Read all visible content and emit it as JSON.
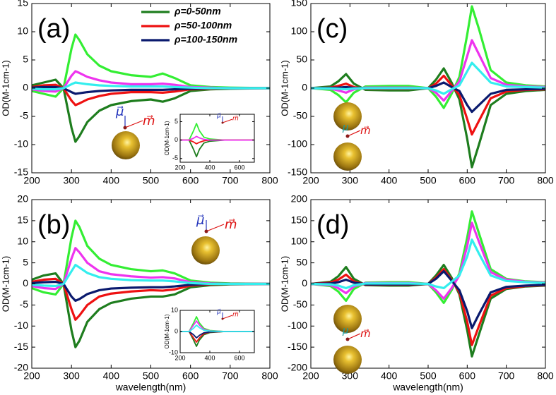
{
  "chart_data": [
    {
      "type": "line",
      "label": "(a)",
      "ylabel": "OD(M-1cm-1)",
      "legend": "top",
      "x": [
        200,
        230,
        260,
        280,
        300,
        310,
        320,
        340,
        370,
        400,
        450,
        500,
        530,
        560,
        600,
        650,
        700,
        800
      ],
      "xlim": [
        200,
        800
      ],
      "ylim": [
        -15,
        15
      ],
      "xticks": [
        200,
        300,
        400,
        500,
        600,
        700,
        800
      ],
      "yticks": [
        -15,
        -10,
        -5,
        0,
        5,
        10,
        15
      ],
      "series": [
        {
          "name": "ρ=0-50nm",
          "color": "#1e7d1e",
          "values": [
            0.5,
            1,
            1.5,
            0,
            -7,
            -9.5,
            -8.5,
            -6,
            -4,
            -3,
            -2.3,
            -2,
            -2.4,
            -1.8,
            -0.5,
            -0.2,
            -0.1,
            0
          ]
        },
        {
          "color": "#33ee33",
          "values": [
            -0.5,
            -1,
            -1.5,
            0,
            7,
            9.5,
            8.5,
            6,
            4,
            3,
            2.3,
            2,
            2.6,
            1.8,
            0.5,
            0.2,
            0.1,
            0
          ]
        },
        {
          "name": "ρ=50-100nm",
          "color": "#ee1111",
          "values": [
            0.2,
            0.5,
            0.6,
            0,
            -2.2,
            -3,
            -2.7,
            -2,
            -1.4,
            -1,
            -0.7,
            -0.7,
            -0.8,
            -0.6,
            -0.2,
            -0.1,
            0,
            0
          ]
        },
        {
          "color": "#ee33ee",
          "values": [
            -0.2,
            -0.5,
            -0.6,
            0,
            2.2,
            3,
            2.7,
            2,
            1.4,
            1,
            0.7,
            0.7,
            0.8,
            0.6,
            0.2,
            0.1,
            0,
            0
          ]
        },
        {
          "name": "ρ=100-150nm",
          "color": "#0a1a6e",
          "values": [
            0.1,
            0.2,
            0.2,
            0,
            -0.7,
            -1,
            -0.9,
            -0.7,
            -0.5,
            -0.4,
            -0.3,
            -0.3,
            -0.3,
            -0.2,
            -0.1,
            0,
            0,
            0
          ]
        },
        {
          "color": "#33eeee",
          "values": [
            -0.1,
            -0.2,
            -0.2,
            0,
            0.7,
            1,
            0.9,
            0.7,
            0.5,
            0.4,
            0.3,
            0.3,
            0.3,
            0.2,
            0.1,
            0,
            0,
            0
          ]
        }
      ],
      "annotations": [
        "μ⃗",
        "m⃗"
      ]
    },
    {
      "type": "line",
      "label": "(b)",
      "ylabel": "OD(M-1cm-1)",
      "xlabel": "wavelength(nm)",
      "x": [
        200,
        230,
        260,
        280,
        300,
        310,
        320,
        340,
        370,
        400,
        450,
        500,
        530,
        560,
        600,
        650,
        700,
        800
      ],
      "xlim": [
        200,
        800
      ],
      "ylim": [
        -20,
        20
      ],
      "xticks": [
        200,
        300,
        400,
        500,
        600,
        700,
        800
      ],
      "yticks": [
        -20,
        -15,
        -10,
        -5,
        0,
        5,
        10,
        15,
        20
      ],
      "series": [
        {
          "color": "#1e7d1e",
          "values": [
            1,
            2,
            2.5,
            0,
            -11,
            -15,
            -13.5,
            -9,
            -6,
            -4.5,
            -3.5,
            -3,
            -3,
            -2.5,
            -0.8,
            -0.3,
            -0.1,
            0
          ]
        },
        {
          "color": "#33ee33",
          "values": [
            -1,
            -2,
            -2.5,
            0,
            11,
            15,
            13.5,
            9,
            6,
            4.5,
            3.5,
            3,
            3.2,
            2.5,
            0.8,
            0.3,
            0.1,
            0
          ]
        },
        {
          "color": "#ee1111",
          "values": [
            0.5,
            1,
            1.2,
            0,
            -6,
            -8.5,
            -7.5,
            -5,
            -3,
            -2.3,
            -1.8,
            -1.5,
            -1.6,
            -1.3,
            -0.4,
            -0.1,
            0,
            0
          ]
        },
        {
          "color": "#ee33ee",
          "values": [
            -0.5,
            -1,
            -1.2,
            0,
            6,
            8.5,
            7.5,
            5,
            3,
            2.3,
            1.8,
            1.5,
            1.6,
            1.3,
            0.4,
            0.1,
            0,
            0
          ]
        },
        {
          "color": "#0a1a6e",
          "values": [
            0.2,
            0.4,
            0.5,
            0,
            -3,
            -4,
            -3.6,
            -2.4,
            -1.5,
            -1.1,
            -0.9,
            -0.8,
            -0.8,
            -0.6,
            -0.2,
            0,
            0,
            0
          ]
        },
        {
          "color": "#33eeee",
          "values": [
            -0.2,
            -0.4,
            -0.5,
            0,
            3,
            4.5,
            3.9,
            2.6,
            1.6,
            1.2,
            0.9,
            0.8,
            0.8,
            0.6,
            0.2,
            0,
            0,
            0
          ]
        }
      ],
      "annotations": [
        "μ⃗",
        "m⃗"
      ]
    },
    {
      "type": "line",
      "label": "(c)",
      "ylabel": "OD(M-1cm-1)",
      "x": [
        200,
        250,
        270,
        290,
        310,
        340,
        400,
        450,
        500,
        520,
        540,
        560,
        580,
        600,
        612,
        630,
        660,
        700,
        750,
        800
      ],
      "xlim": [
        200,
        800
      ],
      "ylim": [
        -150,
        150
      ],
      "xticks": [
        200,
        300,
        400,
        500,
        600,
        700,
        800
      ],
      "yticks": [
        -150,
        -100,
        -50,
        0,
        50,
        100,
        150
      ],
      "series": [
        {
          "color": "#1e7d1e",
          "values": [
            0,
            3,
            12,
            25,
            8,
            -3,
            -4,
            -4,
            0,
            15,
            35,
            10,
            -20,
            -90,
            -140,
            -100,
            -30,
            -10,
            -5,
            -3
          ]
        },
        {
          "color": "#33ee33",
          "values": [
            0,
            -3,
            -12,
            -25,
            -8,
            3,
            4,
            4,
            0,
            -15,
            -35,
            -10,
            20,
            95,
            145,
            105,
            32,
            10,
            5,
            3
          ]
        },
        {
          "color": "#ee1111",
          "values": [
            0,
            1,
            4,
            8,
            2,
            -1,
            -1,
            -1,
            0,
            8,
            22,
            5,
            -12,
            -55,
            -82,
            -58,
            -18,
            -6,
            -3,
            -2
          ]
        },
        {
          "color": "#ee33ee",
          "values": [
            0,
            -1,
            -4,
            -8,
            -2,
            1,
            1,
            1,
            0,
            -8,
            -22,
            -5,
            12,
            57,
            85,
            60,
            18,
            6,
            3,
            2
          ]
        },
        {
          "color": "#0a1a6e",
          "values": [
            0,
            0.5,
            1,
            2,
            0.5,
            0,
            0,
            0,
            0,
            4,
            10,
            2,
            -5,
            -30,
            -42,
            -30,
            -10,
            -3,
            -2,
            -1
          ]
        },
        {
          "color": "#33eeee",
          "values": [
            0,
            -0.5,
            -1,
            -2,
            -0.5,
            0,
            0,
            0,
            0,
            -4,
            -10,
            -2,
            5,
            30,
            45,
            32,
            10,
            3,
            2,
            1
          ]
        }
      ],
      "annotations": [
        "μ",
        "m⃗"
      ]
    },
    {
      "type": "line",
      "label": "(d)",
      "ylabel": "OD(M-1cm-1)",
      "xlabel": "wavelength(nm)",
      "x": [
        200,
        250,
        270,
        290,
        310,
        340,
        400,
        450,
        500,
        520,
        540,
        560,
        580,
        600,
        612,
        630,
        660,
        700,
        750,
        800
      ],
      "xlim": [
        200,
        800
      ],
      "ylim": [
        -200,
        200
      ],
      "xticks": [
        200,
        300,
        400,
        500,
        600,
        700,
        800
      ],
      "yticks": [
        -200,
        -150,
        -100,
        -50,
        0,
        50,
        100,
        150,
        200
      ],
      "series": [
        {
          "color": "#1e7d1e",
          "values": [
            0,
            5,
            18,
            40,
            12,
            -3,
            -4,
            -4,
            0,
            20,
            45,
            15,
            -25,
            -110,
            -172,
            -120,
            -35,
            -12,
            -6,
            -4
          ]
        },
        {
          "color": "#33ee33",
          "values": [
            0,
            -5,
            -18,
            -40,
            -12,
            3,
            4,
            4,
            0,
            -20,
            -45,
            -15,
            25,
            110,
            172,
            120,
            35,
            12,
            6,
            4
          ]
        },
        {
          "color": "#ee1111",
          "values": [
            0,
            3,
            10,
            22,
            6,
            -2,
            -2,
            -2,
            0,
            15,
            35,
            10,
            -20,
            -90,
            -145,
            -100,
            -28,
            -10,
            -5,
            -3
          ]
        },
        {
          "color": "#ee33ee",
          "values": [
            0,
            -3,
            -10,
            -22,
            -6,
            2,
            2,
            2,
            0,
            -15,
            -35,
            -10,
            20,
            90,
            145,
            100,
            28,
            10,
            5,
            3
          ]
        },
        {
          "color": "#0a1a6e",
          "values": [
            0,
            1,
            4,
            10,
            3,
            -1,
            -1,
            -1,
            0,
            12,
            30,
            8,
            -15,
            -65,
            -105,
            -72,
            -20,
            -7,
            -4,
            -2
          ]
        },
        {
          "color": "#33eeee",
          "values": [
            0,
            -1,
            -4,
            -10,
            -3,
            1,
            1,
            1,
            0,
            -6,
            -10,
            5,
            20,
            65,
            105,
            72,
            20,
            7,
            4,
            2
          ]
        }
      ],
      "annotations": [
        "μ",
        "m⃗"
      ]
    },
    {
      "type": "line",
      "ylabel": "OD(M-1cm-1)",
      "x": [
        200,
        260,
        290,
        310,
        330,
        360,
        400,
        500,
        600,
        700
      ],
      "xlim": [
        200,
        700
      ],
      "ylim": [
        -6,
        7
      ],
      "xticks": [
        200,
        400,
        600
      ],
      "yticks": [
        -5,
        0,
        5
      ],
      "series": [
        {
          "color": "#1e7d1e",
          "values": [
            0,
            0,
            -2.5,
            -4.5,
            -2.5,
            -0.8,
            -0.3,
            0,
            0,
            0
          ]
        },
        {
          "color": "#33ee33",
          "values": [
            0,
            0,
            2.5,
            4.5,
            2.5,
            0.8,
            0.3,
            0,
            0,
            0
          ]
        },
        {
          "color": "#ee1111",
          "values": [
            0,
            0,
            -0.5,
            -1,
            -0.6,
            -0.2,
            0,
            0,
            0,
            0
          ]
        },
        {
          "color": "#ee33ee",
          "values": [
            0,
            0,
            0.5,
            1,
            0.6,
            0.2,
            0,
            0,
            0,
            0
          ]
        }
      ],
      "annotations": [
        "μ⃗",
        "m⃗"
      ]
    },
    {
      "type": "line",
      "ylabel": "OD(M-1cm-1)",
      "x": [
        200,
        260,
        290,
        310,
        330,
        360,
        400,
        500,
        600,
        700
      ],
      "xlim": [
        200,
        700
      ],
      "ylim": [
        -10,
        10
      ],
      "xticks": [
        200,
        400,
        600
      ],
      "yticks": [
        -10,
        0,
        10
      ],
      "series": [
        {
          "color": "#1e7d1e",
          "values": [
            0,
            0,
            -4,
            -7,
            -4,
            -1.5,
            -0.5,
            0,
            0,
            0
          ]
        },
        {
          "color": "#33ee33",
          "values": [
            0,
            0,
            4,
            7,
            4,
            1.5,
            0.5,
            0,
            0,
            0
          ]
        },
        {
          "color": "#ee1111",
          "values": [
            0,
            0,
            -3,
            -5,
            -3,
            -1,
            -0.3,
            0,
            0,
            0
          ]
        },
        {
          "color": "#ee33ee",
          "values": [
            0,
            0,
            3,
            5,
            3,
            1,
            0.3,
            0,
            0,
            0
          ]
        },
        {
          "color": "#0a1a6e",
          "values": [
            0,
            0,
            -1.5,
            -3,
            -1.8,
            -0.6,
            -0.2,
            0,
            0,
            0
          ]
        },
        {
          "color": "#33eeee",
          "values": [
            0,
            0,
            1.5,
            3,
            1.8,
            0.6,
            0.2,
            0,
            0,
            0
          ]
        }
      ],
      "annotations": [
        "μ⃗",
        "m⃗"
      ]
    }
  ]
}
